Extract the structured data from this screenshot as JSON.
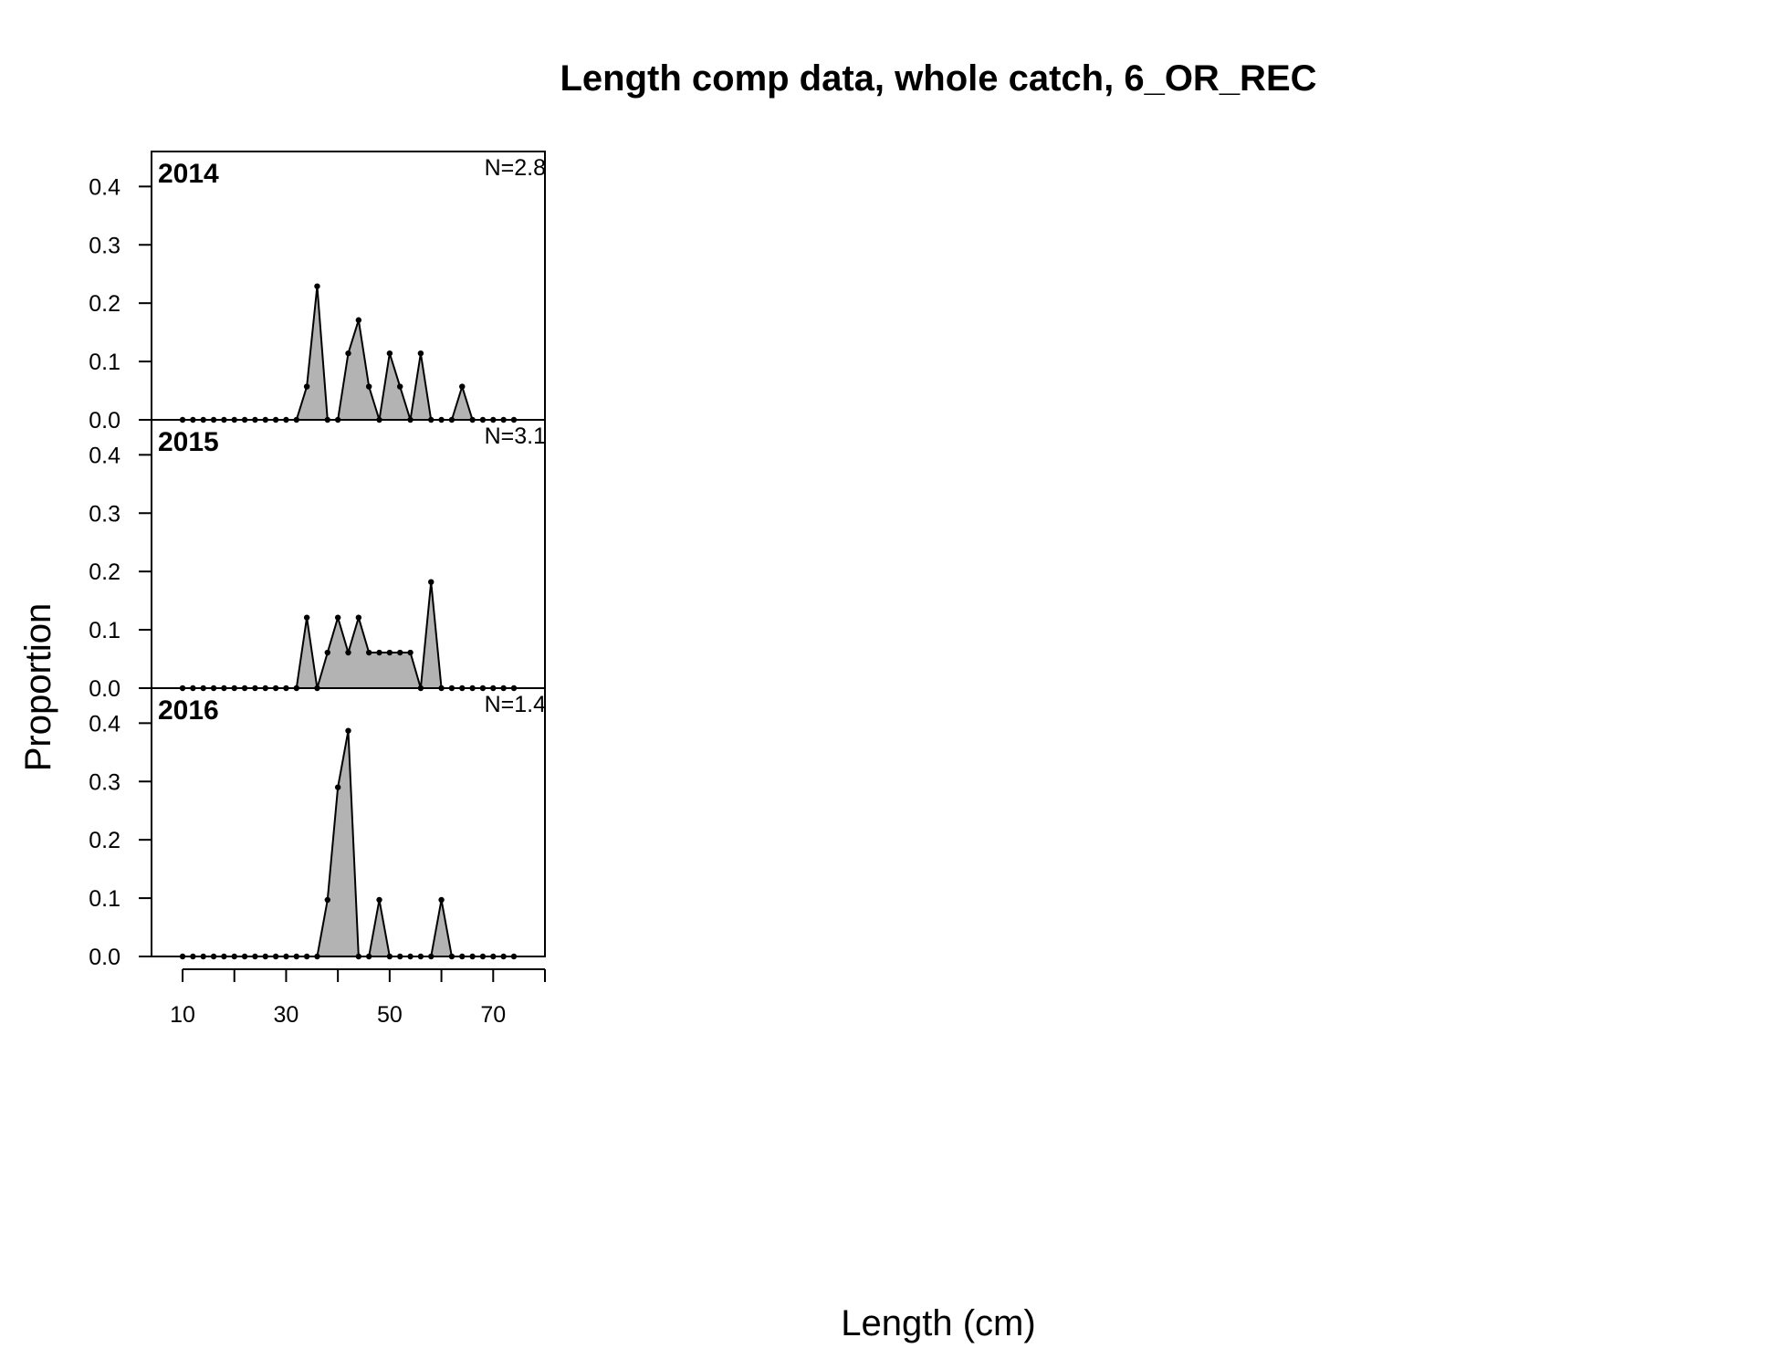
{
  "chart_data": {
    "type": "area",
    "title": "Length comp data, whole catch, 6_OR_REC",
    "xlabel": "Length (cm)",
    "ylabel": "Proportion",
    "xlim": [
      4,
      80
    ],
    "ylim": [
      0,
      0.46
    ],
    "x_ticks": [
      10,
      30,
      50,
      70
    ],
    "y_ticks": [
      0.0,
      0.1,
      0.2,
      0.3,
      0.4
    ],
    "x_tick_labels": [
      "10",
      "30",
      "50",
      "70"
    ],
    "y_tick_labels": [
      "0.0",
      "0.1",
      "0.2",
      "0.3",
      "0.4"
    ],
    "x": [
      10,
      12,
      14,
      16,
      18,
      20,
      22,
      24,
      26,
      28,
      30,
      32,
      34,
      36,
      38,
      40,
      42,
      44,
      46,
      48,
      50,
      52,
      54,
      56,
      58,
      60,
      62,
      64,
      66,
      68,
      70,
      72,
      74
    ],
    "panels": [
      {
        "year": "2014",
        "n_label": "N=2.8",
        "values": [
          0,
          0,
          0,
          0,
          0,
          0,
          0,
          0,
          0,
          0,
          0,
          0,
          0.057,
          0.229,
          0,
          0,
          0.114,
          0.171,
          0.057,
          0,
          0.114,
          0.057,
          0,
          0.114,
          0,
          0,
          0,
          0.057,
          0,
          0,
          0,
          0,
          0
        ]
      },
      {
        "year": "2015",
        "n_label": "N=3.1",
        "values": [
          0,
          0,
          0,
          0,
          0,
          0,
          0,
          0,
          0,
          0,
          0,
          0,
          0.121,
          0,
          0.061,
          0.121,
          0.061,
          0.121,
          0.061,
          0.061,
          0.061,
          0.061,
          0.061,
          0,
          0.182,
          0,
          0,
          0,
          0,
          0,
          0,
          0,
          0
        ]
      },
      {
        "year": "2016",
        "n_label": "N=1.4",
        "values": [
          0,
          0,
          0,
          0,
          0,
          0,
          0,
          0,
          0,
          0,
          0,
          0,
          0,
          0,
          0.097,
          0.29,
          0.387,
          0,
          0,
          0.097,
          0,
          0,
          0,
          0,
          0,
          0.097,
          0,
          0,
          0,
          0,
          0,
          0,
          0
        ]
      }
    ],
    "fill_color": "#b3b3b3",
    "line_color": "#000000",
    "grid": false
  }
}
